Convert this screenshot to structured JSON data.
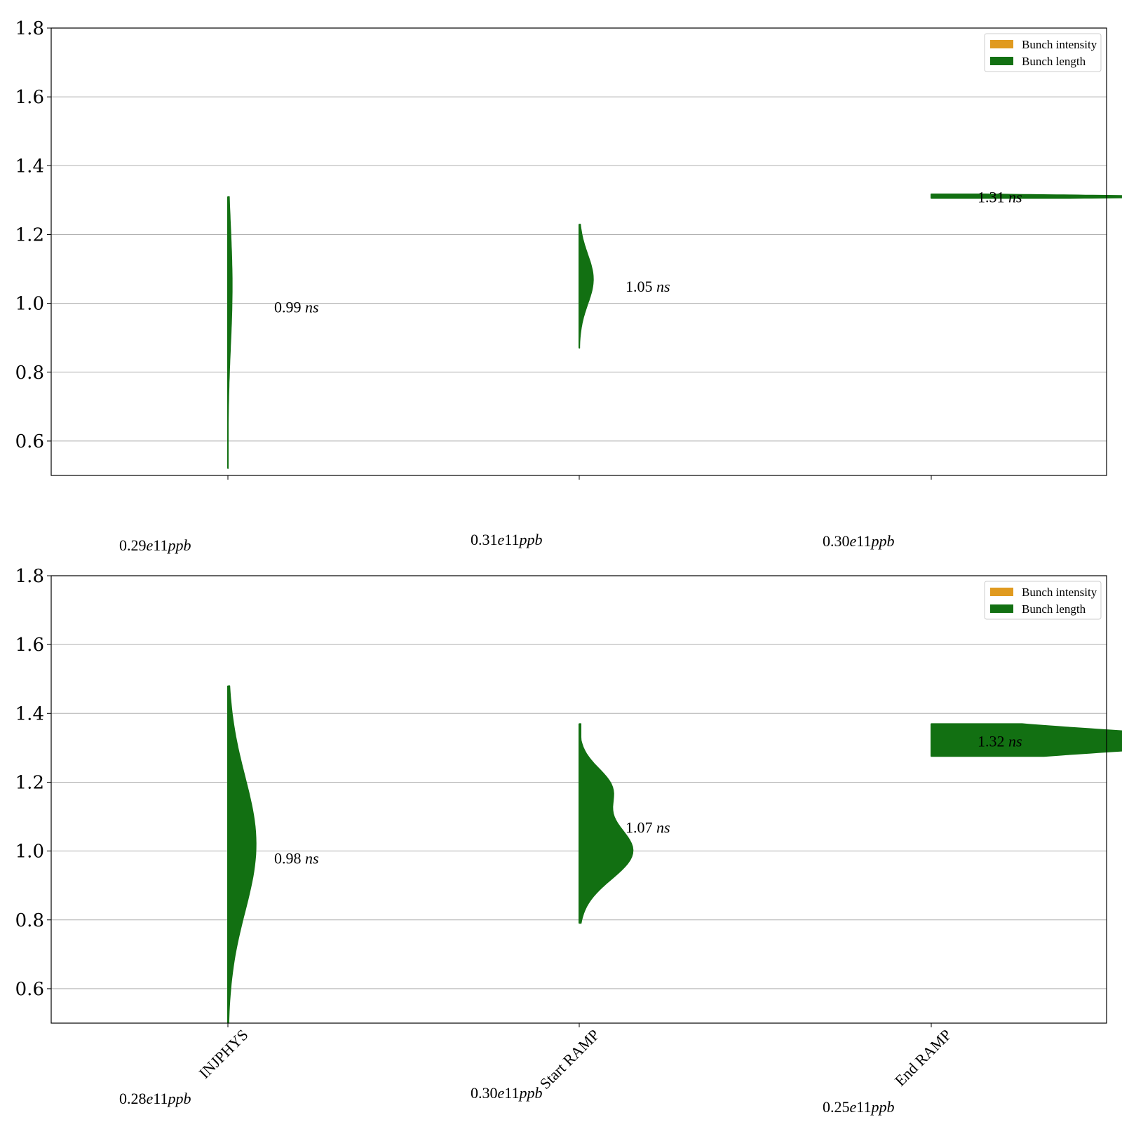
{
  "chart_data": [
    {
      "type": "violin",
      "categories": [
        "INJPHYS",
        "Start RAMP",
        "End RAMP"
      ],
      "show_category_labels": false,
      "ylim": [
        0.5,
        1.8
      ],
      "yticks": [
        "0.6",
        "0.8",
        "1.0",
        "1.2",
        "1.4",
        "1.6",
        "1.8"
      ],
      "grid": true,
      "legend": {
        "position": "top-right",
        "entries": [
          {
            "label": "Bunch intensity",
            "color": "#e09a1f"
          },
          {
            "label": "Bunch length",
            "color": "#127012"
          }
        ]
      },
      "violins": [
        {
          "category": "INJPHYS",
          "label_value": "0.99",
          "label_unit": "ns",
          "median": 0.99,
          "min": 0.52,
          "max": 1.31,
          "peak": 1.05,
          "max_halfwidth": 0.012,
          "shape": "narrow"
        },
        {
          "category": "Start RAMP",
          "label_value": "1.05",
          "label_unit": "ns",
          "median": 1.05,
          "min": 0.87,
          "max": 1.23,
          "peak": 1.07,
          "max_halfwidth": 0.04,
          "shape": "normal"
        },
        {
          "category": "End RAMP",
          "label_value": "1.31",
          "label_unit": "ns",
          "median": 1.31,
          "min": 1.305,
          "max": 1.318,
          "peak": 1.31,
          "max_halfwidth": 0.72,
          "shape": "flat"
        }
      ],
      "intensity_labels": [
        {
          "category": "INJPHYS",
          "value": "0.29",
          "exp": "e11",
          "unit": "ppb"
        },
        {
          "category": "Start RAMP",
          "value": "0.31",
          "exp": "e11",
          "unit": "ppb"
        },
        {
          "category": "End RAMP",
          "value": "0.30",
          "exp": "e11",
          "unit": "ppb"
        }
      ]
    },
    {
      "type": "violin",
      "categories": [
        "INJPHYS",
        "Start RAMP",
        "End RAMP"
      ],
      "show_category_labels": true,
      "ylim": [
        0.5,
        1.8
      ],
      "yticks": [
        "0.6",
        "0.8",
        "1.0",
        "1.2",
        "1.4",
        "1.6",
        "1.8"
      ],
      "grid": true,
      "legend": {
        "position": "top-right",
        "entries": [
          {
            "label": "Bunch intensity",
            "color": "#e09a1f"
          },
          {
            "label": "Bunch length",
            "color": "#127012"
          }
        ]
      },
      "violins": [
        {
          "category": "INJPHYS",
          "label_value": "0.98",
          "label_unit": "ns",
          "median": 0.98,
          "min": 0.5,
          "max": 1.48,
          "peak": 1.02,
          "max_halfwidth": 0.08,
          "shape": "normal"
        },
        {
          "category": "Start RAMP",
          "label_value": "1.07",
          "label_unit": "ns",
          "median": 1.07,
          "min": 0.79,
          "max": 1.37,
          "peak": 1.0,
          "max_halfwidth": 0.16,
          "shape": "bimodal"
        },
        {
          "category": "End RAMP",
          "label_value": "1.32",
          "label_unit": "ns",
          "median": 1.32,
          "min": 1.275,
          "max": 1.37,
          "peak": 1.32,
          "max_halfwidth": 0.8,
          "shape": "flat"
        }
      ],
      "intensity_labels": [
        {
          "category": "INJPHYS",
          "value": "0.28",
          "exp": "e11",
          "unit": "ppb"
        },
        {
          "category": "Start RAMP",
          "value": "0.30",
          "exp": "e11",
          "unit": "ppb"
        },
        {
          "category": "End RAMP",
          "value": "0.25",
          "exp": "e11",
          "unit": "ppb"
        }
      ]
    }
  ]
}
